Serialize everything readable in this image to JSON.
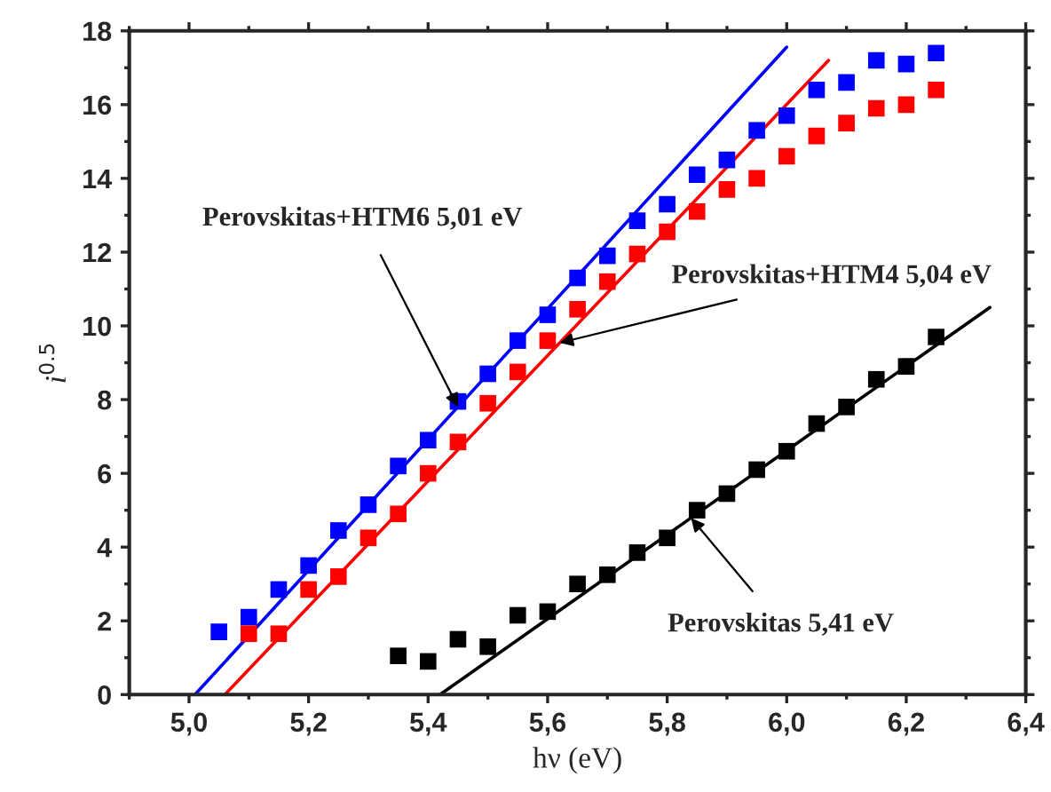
{
  "chart_data": {
    "type": "scatter",
    "xlabel": "hν (eV)",
    "ylabel": "i$^{0.5}$",
    "x": [
      5.05,
      5.1,
      5.15,
      5.2,
      5.25,
      5.3,
      5.35,
      5.4,
      5.45,
      5.5,
      5.55,
      5.6,
      5.65,
      5.7,
      5.75,
      5.8,
      5.85,
      5.9,
      5.95,
      6.0,
      6.05,
      6.1,
      6.15,
      6.2,
      6.25
    ],
    "series": [
      {
        "color": "#0000ff",
        "marker": "square",
        "values": [
          1.7,
          2.1,
          2.85,
          3.5,
          4.45,
          5.15,
          6.2,
          6.9,
          7.95,
          8.7,
          9.6,
          10.3,
          11.3,
          11.9,
          12.85,
          13.3,
          14.1,
          14.5,
          15.3,
          15.7,
          16.4,
          16.6,
          17.2,
          17.1,
          17.4
        ]
      },
      {
        "color": "#ff0000",
        "marker": "square",
        "values": [
          null,
          1.65,
          1.65,
          2.85,
          3.2,
          4.25,
          4.9,
          6.0,
          6.85,
          7.9,
          8.75,
          9.6,
          10.45,
          11.2,
          11.95,
          12.55,
          13.1,
          13.7,
          14.0,
          14.6,
          15.15,
          15.5,
          15.9,
          16.0,
          16.4
        ]
      },
      {
        "color": "#000000",
        "marker": "square",
        "values": [
          null,
          null,
          null,
          null,
          null,
          null,
          1.05,
          0.9,
          1.5,
          1.3,
          2.15,
          2.25,
          3.0,
          3.25,
          3.85,
          4.25,
          5.0,
          5.45,
          6.1,
          6.6,
          7.35,
          7.8,
          8.55,
          8.9,
          9.7
        ]
      },
      {
        "type": "line",
        "color": "#0000ff",
        "x": [
          5.01,
          6.0
        ],
        "values": [
          0,
          17.56
        ]
      },
      {
        "type": "line",
        "color": "#ff0000",
        "x": [
          5.06,
          6.07
        ],
        "values": [
          0,
          17.2
        ]
      },
      {
        "type": "line",
        "color": "#000000",
        "x": [
          5.42,
          6.34
        ],
        "values": [
          0,
          10.5
        ]
      }
    ],
    "xlim": [
      4.9,
      6.4
    ],
    "xticks": [
      {
        "value": 5.0,
        "label": "5,0"
      },
      {
        "value": 5.2,
        "label": "5,2"
      },
      {
        "value": 5.4,
        "label": "5,4"
      },
      {
        "value": 5.6,
        "label": "5,6"
      },
      {
        "value": 5.8,
        "label": "5,8"
      },
      {
        "value": 6.0,
        "label": "6,0"
      },
      {
        "value": 6.2,
        "label": "6,2"
      },
      {
        "value": 6.4,
        "label": "6,4"
      }
    ],
    "ylim": [
      0,
      18
    ],
    "yticks": [
      0,
      2,
      4,
      6,
      8,
      10,
      12,
      14,
      16,
      18
    ],
    "grid": false,
    "legend": false,
    "annotations": [
      {
        "text": "Perovskitas+HTM6 5,01 eV",
        "x": 5.45,
        "y": 7.8
      },
      {
        "text": "Perovskitas+HTM4 5,04 eV",
        "x": 5.62,
        "y": 9.54
      },
      {
        "text": "Perovskitas 5,41 eV",
        "x": 5.84,
        "y": 4.79
      }
    ]
  }
}
